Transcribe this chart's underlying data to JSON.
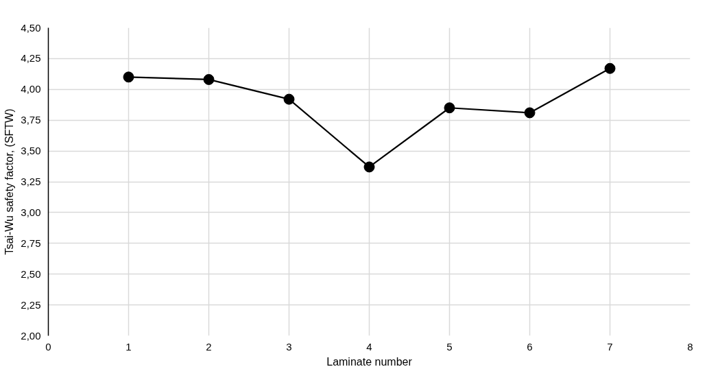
{
  "chart_data": {
    "type": "line",
    "xlabel": "Laminate number",
    "ylabel": "Tsai-Wu safety factor, (SFTW)",
    "x": [
      1,
      2,
      3,
      4,
      5,
      6,
      7
    ],
    "series": [
      {
        "color": "#000000",
        "values": [
          4.1,
          4.08,
          3.92,
          3.37,
          3.85,
          3.81,
          4.17
        ]
      }
    ],
    "xlim": [
      0,
      8
    ],
    "xticks": [
      0,
      1,
      2,
      3,
      4,
      5,
      6,
      7,
      8
    ],
    "ylim": [
      2,
      4.5
    ],
    "yticks": [
      {
        "value": 2,
        "label": "2,00"
      },
      {
        "value": 2.25,
        "label": "2,25"
      },
      {
        "value": 2.5,
        "label": "2,50"
      },
      {
        "value": 2.75,
        "label": "2,75"
      },
      {
        "value": 3,
        "label": "3,00"
      },
      {
        "value": 3.25,
        "label": "3,25"
      },
      {
        "value": 3.5,
        "label": "3,50"
      },
      {
        "value": 3.75,
        "label": "3,75"
      },
      {
        "value": 4,
        "label": "4,00"
      },
      {
        "value": 4.25,
        "label": "4,25"
      },
      {
        "value": 4.5,
        "label": "4,50"
      }
    ],
    "grid": true,
    "marker": "circle",
    "line_style": "solid"
  }
}
